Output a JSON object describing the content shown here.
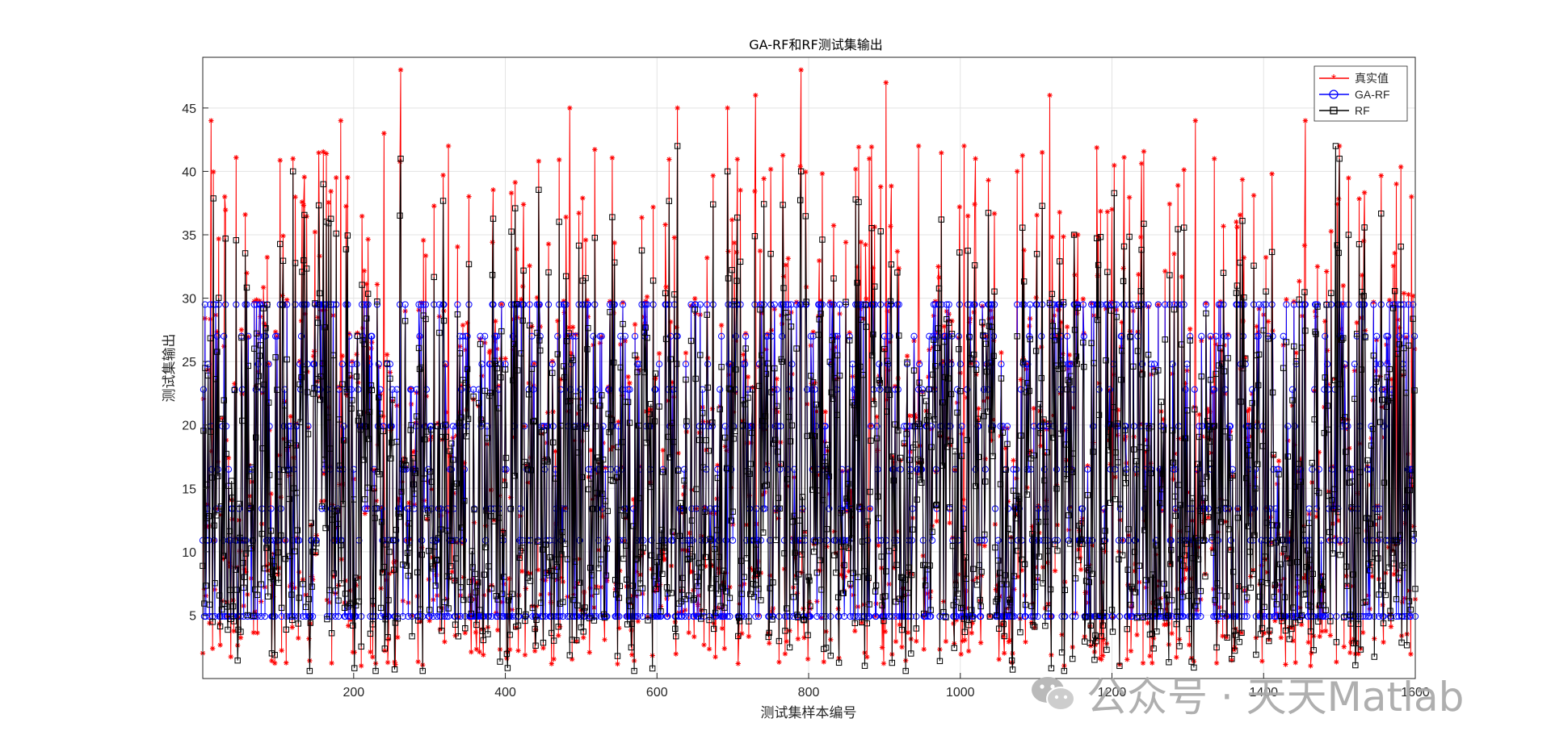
{
  "chart_data": {
    "type": "line",
    "title": "GA-RF和RF测试集输出",
    "xlabel": "测试集样本编号",
    "ylabel": "测试集输出",
    "xlim": [
      1,
      1600
    ],
    "ylim": [
      0,
      49
    ],
    "xticks": [
      200,
      400,
      600,
      800,
      1000,
      1200,
      1400,
      1600
    ],
    "yticks": [
      5,
      10,
      15,
      20,
      25,
      30,
      35,
      40,
      45
    ],
    "grid": true,
    "legend_position": "top-right",
    "n_samples": 1600,
    "series": [
      {
        "name": "真实值",
        "color": "#ff0000",
        "marker": "asterisk",
        "sample_points": [
          [
            1,
            2
          ],
          [
            12,
            44
          ],
          [
            30,
            38
          ],
          [
            120,
            41
          ],
          [
            183,
            44
          ],
          [
            240,
            43
          ],
          [
            262,
            48
          ],
          [
            325,
            42
          ],
          [
            485,
            45
          ],
          [
            627,
            45
          ],
          [
            693,
            45
          ],
          [
            730,
            46
          ],
          [
            790,
            48
          ],
          [
            880,
            41
          ],
          [
            902,
            47
          ],
          [
            945,
            42
          ],
          [
            1005,
            42
          ],
          [
            1020,
            41
          ],
          [
            1075,
            40
          ],
          [
            1118,
            46
          ],
          [
            1150,
            35
          ],
          [
            1200,
            37
          ],
          [
            1310,
            44
          ],
          [
            1335,
            41
          ],
          [
            1455,
            44
          ],
          [
            1500,
            42
          ],
          [
            1575,
            39
          ],
          [
            1595,
            38
          ]
        ]
      },
      {
        "name": "GA-RF",
        "color": "#0000ff",
        "marker": "circle",
        "levels": [
          4.9,
          10.9,
          13.4,
          16.5,
          19.9,
          22.8,
          24.8,
          27.0,
          29.5
        ]
      },
      {
        "name": "RF",
        "color": "#000000",
        "marker": "square",
        "sample_points": [
          [
            262,
            41
          ],
          [
            120,
            40
          ],
          [
            627,
            42
          ],
          [
            693,
            40
          ],
          [
            790,
            40
          ],
          [
            1495,
            42
          ],
          [
            1500,
            41
          ],
          [
            1150,
            35
          ]
        ]
      }
    ]
  },
  "watermark": {
    "text": "公众号 · 天天Matlab",
    "icon": "wechat-icon"
  }
}
